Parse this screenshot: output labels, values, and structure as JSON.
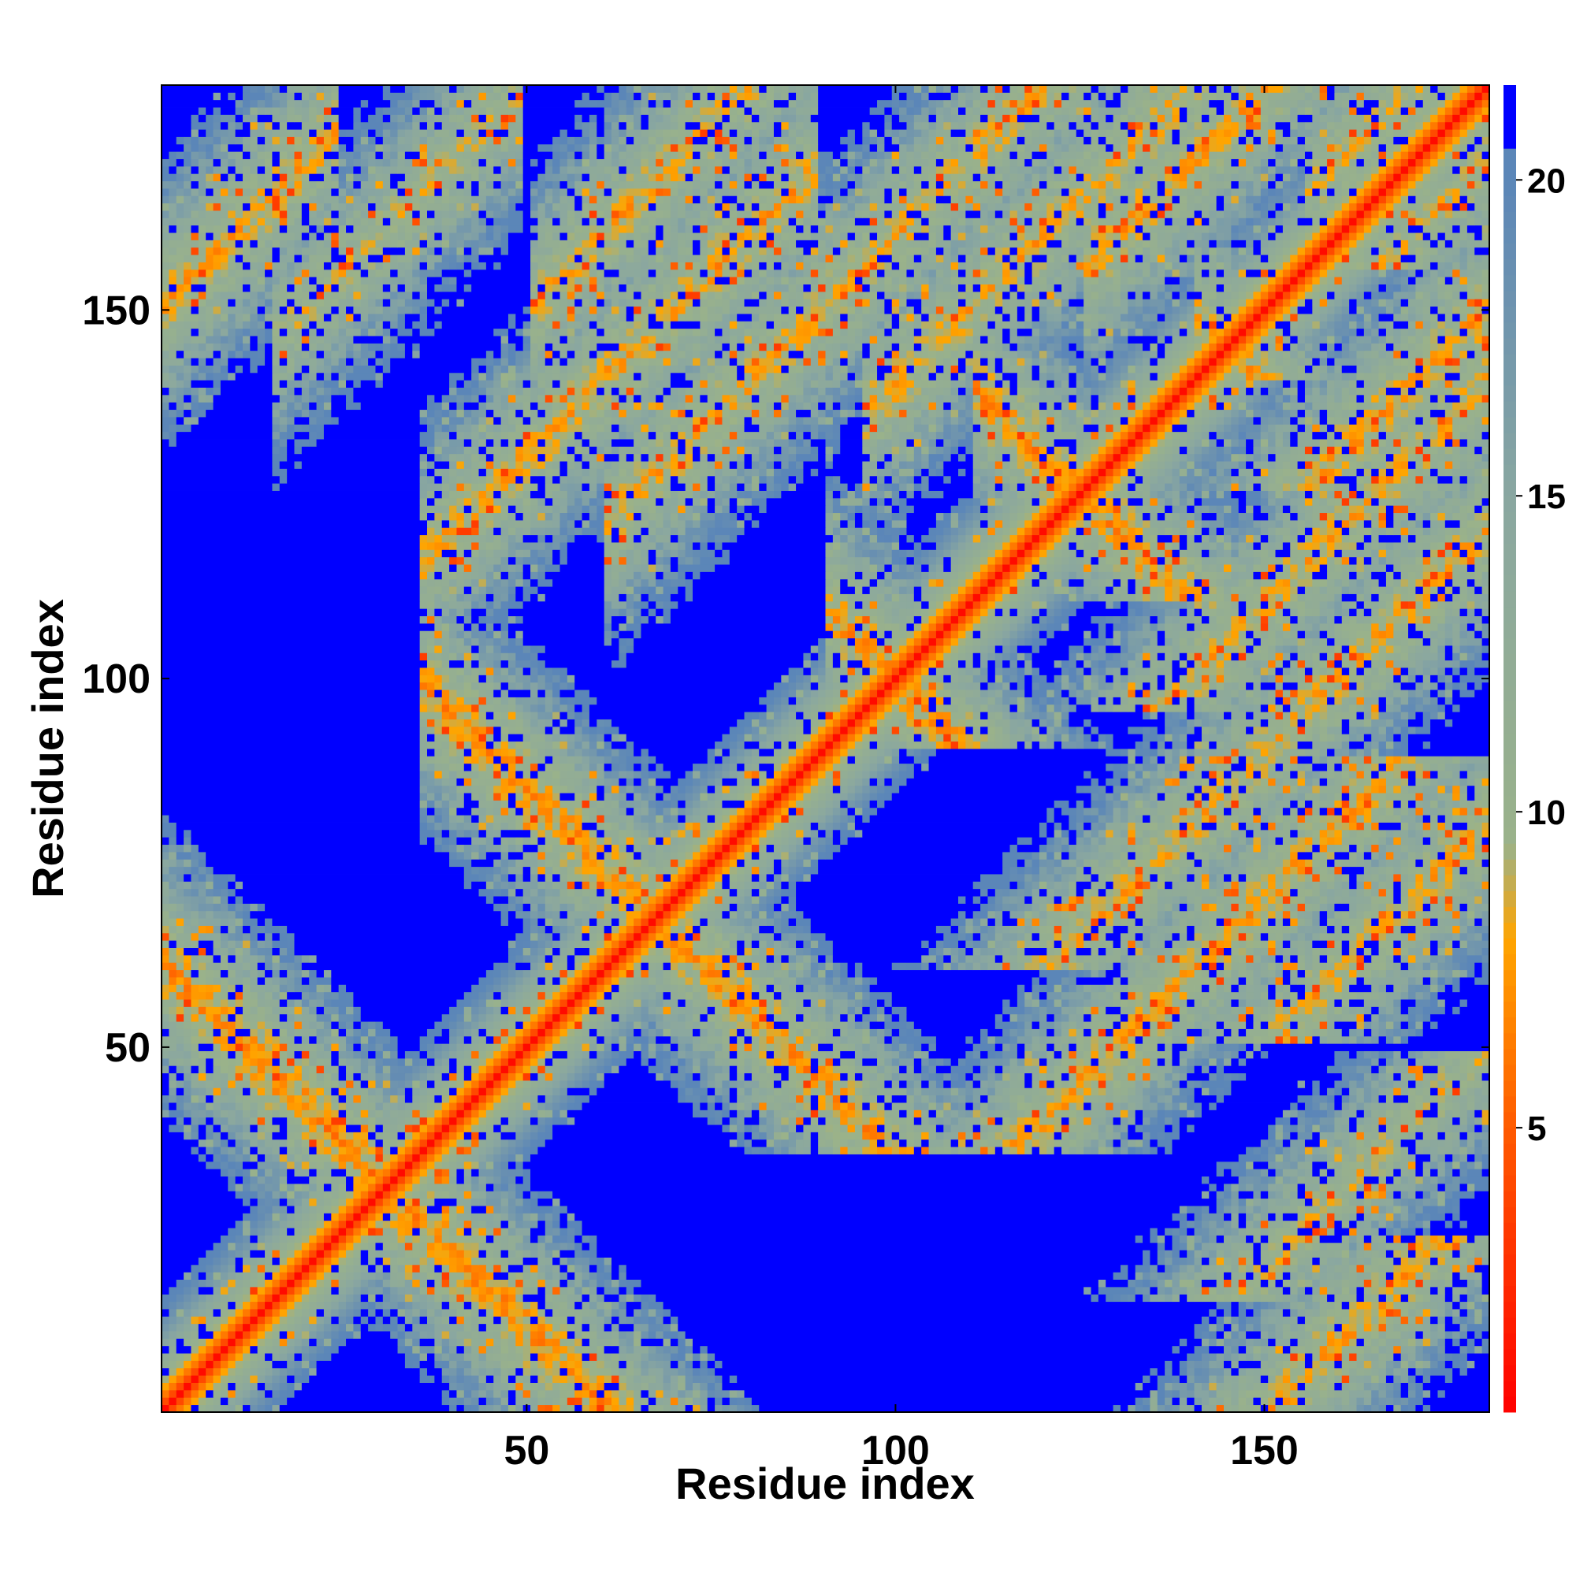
{
  "chart_data": {
    "type": "heatmap",
    "title": "",
    "xlabel": "Residue index",
    "ylabel": "Residue index",
    "n_residues": 180,
    "xlim": [
      1,
      180
    ],
    "ylim": [
      1,
      180
    ],
    "x_ticks": [
      50,
      100,
      150
    ],
    "y_ticks": [
      50,
      100,
      150
    ],
    "x_tick_labels": [
      "50",
      "100",
      "150"
    ],
    "y_tick_labels": [
      "50",
      "100",
      "150"
    ],
    "colorbar": {
      "min": 0.5,
      "max": 21.5,
      "ticks": [
        5,
        10,
        15,
        20
      ],
      "tick_labels": [
        "5",
        "10",
        "15",
        "20"
      ],
      "above_max_color": "#0000ff",
      "stops": [
        {
          "value": 0.5,
          "color": "#ff0000"
        },
        {
          "value": 5,
          "color": "#ff5a00"
        },
        {
          "value": 8,
          "color": "#ffa500"
        },
        {
          "value": 9.5,
          "color": "#9ab28a"
        },
        {
          "value": 15,
          "color": "#8aa7a0"
        },
        {
          "value": 20,
          "color": "#5b86b8"
        }
      ]
    },
    "contact_bands": [
      {
        "type": "antidiagonal",
        "sum": 62,
        "i_range": [
          1,
          45
        ],
        "strength": 0.9
      },
      {
        "type": "antidiagonal",
        "sum": 135,
        "i_range": [
          40,
          95
        ],
        "strength": 0.85
      },
      {
        "type": "antidiagonal",
        "sum": 200,
        "i_range": [
          95,
          140
        ],
        "strength": 0.85
      },
      {
        "type": "antidiagonal",
        "sum": 250,
        "i_range": [
          115,
          180
        ],
        "strength": 0.85
      },
      {
        "type": "antidiagonal",
        "sum": 290,
        "i_range": [
          145,
          180
        ],
        "strength": 0.75
      },
      {
        "type": "diagonal",
        "offset": 100,
        "i_range": [
          55,
          85
        ],
        "strength": 0.7
      },
      {
        "type": "diagonal",
        "offset": 40,
        "i_range": [
          100,
          160
        ],
        "strength": 0.7
      },
      {
        "type": "diagonal",
        "offset": 80,
        "i_range": [
          40,
          85
        ],
        "strength": 0.75
      },
      {
        "type": "diagonal",
        "offset": 30,
        "i_range": [
          130,
          180
        ],
        "strength": 0.75
      },
      {
        "type": "diagonal",
        "offset": 150,
        "i_range": [
          1,
          20
        ],
        "strength": 0.75
      },
      {
        "type": "diagonal",
        "offset": 10,
        "i_range": [
          160,
          180
        ],
        "strength": 0.6
      },
      {
        "type": "diagonal",
        "offset": 60,
        "i_range": [
          65,
          130
        ],
        "strength": 0.7
      },
      {
        "type": "diagonal",
        "offset": 130,
        "i_range": [
          20,
          45
        ],
        "strength": 0.55
      }
    ]
  }
}
